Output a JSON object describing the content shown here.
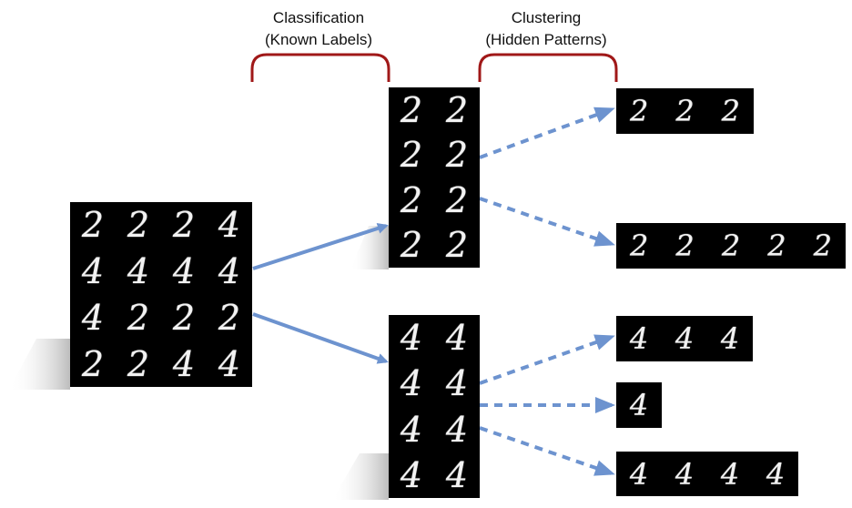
{
  "labels": {
    "classification": {
      "line1": "Classification",
      "line2": "(Known Labels)"
    },
    "clustering": {
      "line1": "Clustering",
      "line2": "(Hidden Patterns)"
    }
  },
  "colors": {
    "bracket": "#a01818",
    "arrow": "#6d93cf",
    "panel": "#000000",
    "digit": "#f2f2f2",
    "shadow": "#c8c8c8"
  },
  "panels": {
    "input": [
      "2",
      "2",
      "2",
      "4",
      "4",
      "4",
      "4",
      "4",
      "4",
      "2",
      "2",
      "2",
      "2",
      "2",
      "4",
      "4"
    ],
    "class_2": [
      "2",
      "2",
      "2",
      "2",
      "2",
      "2",
      "2",
      "2"
    ],
    "class_4": [
      "4",
      "4",
      "4",
      "4",
      "4",
      "4",
      "4",
      "4"
    ],
    "cluster_2a": [
      "2",
      "2",
      "2"
    ],
    "cluster_2b": [
      "2",
      "2",
      "2",
      "2",
      "2"
    ],
    "cluster_4a": [
      "4",
      "4",
      "4"
    ],
    "cluster_4b": [
      "4"
    ],
    "cluster_4c": [
      "4",
      "4",
      "4",
      "4"
    ]
  }
}
